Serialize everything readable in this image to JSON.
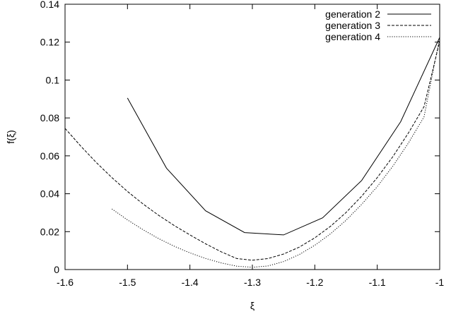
{
  "chart_data": {
    "type": "line",
    "xlabel": "ξ",
    "ylabel": "f(ξ)",
    "xlim": [
      -1.6,
      -1.0
    ],
    "ylim": [
      0,
      0.14
    ],
    "x_ticks": [
      -1.6,
      -1.5,
      -1.4,
      -1.3,
      -1.2,
      -1.1,
      -1.0
    ],
    "x_tick_labels": [
      "-1.6",
      "-1.5",
      "-1.4",
      "-1.3",
      "-1.2",
      "-1.1",
      "-1"
    ],
    "y_ticks": [
      0,
      0.02,
      0.04,
      0.06,
      0.08,
      0.1,
      0.12,
      0.14
    ],
    "y_tick_labels": [
      "0",
      "0.02",
      "0.04",
      "0.06",
      "0.08",
      "0.1",
      "0.12",
      "0.14"
    ],
    "grid": false,
    "legend_position": "top-right",
    "series": [
      {
        "name": "generation 2",
        "style": "solid",
        "x": [
          -1.5,
          -1.4375,
          -1.375,
          -1.3125,
          -1.25,
          -1.1875,
          -1.125,
          -1.0625,
          -1.0
        ],
        "y": [
          0.0905,
          0.0535,
          0.031,
          0.0195,
          0.0183,
          0.0273,
          0.047,
          0.078,
          0.1225
        ]
      },
      {
        "name": "generation 3",
        "style": "dashed",
        "x": [
          -1.6,
          -1.575,
          -1.55,
          -1.525,
          -1.5,
          -1.475,
          -1.45,
          -1.425,
          -1.4,
          -1.375,
          -1.35,
          -1.325,
          -1.3,
          -1.275,
          -1.25,
          -1.225,
          -1.2,
          -1.175,
          -1.15,
          -1.125,
          -1.1,
          -1.075,
          -1.05,
          -1.025,
          -1.0
        ],
        "y": [
          0.0745,
          0.0652,
          0.0565,
          0.0485,
          0.0412,
          0.0346,
          0.0286,
          0.0232,
          0.0183,
          0.0136,
          0.0094,
          0.0058,
          0.0049,
          0.0058,
          0.0082,
          0.0118,
          0.0167,
          0.0228,
          0.0301,
          0.0387,
          0.0485,
          0.0596,
          0.0721,
          0.086,
          0.1205
        ]
      },
      {
        "name": "generation 4",
        "style": "dotted",
        "x": [
          -1.525,
          -1.5,
          -1.475,
          -1.45,
          -1.425,
          -1.4,
          -1.375,
          -1.35,
          -1.325,
          -1.3,
          -1.275,
          -1.25,
          -1.225,
          -1.2,
          -1.175,
          -1.15,
          -1.125,
          -1.1,
          -1.075,
          -1.05,
          -1.025,
          -1.0
        ],
        "y": [
          0.032,
          0.0262,
          0.021,
          0.0163,
          0.0123,
          0.0088,
          0.0059,
          0.0035,
          0.0018,
          0.0012,
          0.0019,
          0.0042,
          0.0079,
          0.0128,
          0.0188,
          0.026,
          0.0344,
          0.0438,
          0.0546,
          0.0668,
          0.0806,
          0.1225
        ]
      }
    ]
  }
}
